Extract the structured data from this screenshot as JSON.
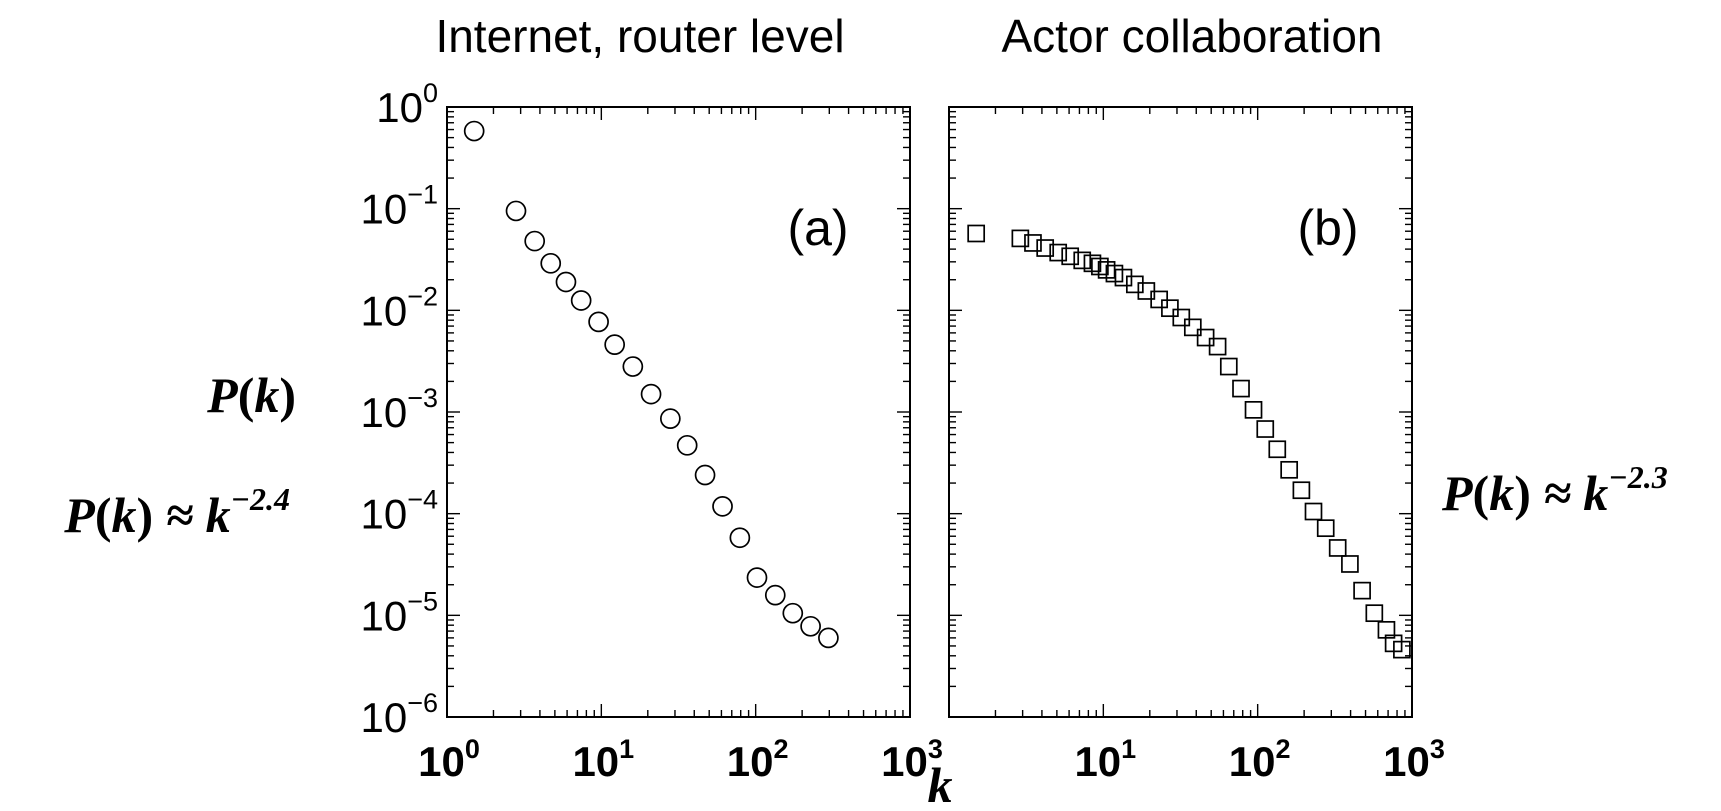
{
  "chart_data": [
    {
      "type": "scatter",
      "panel": "(a)",
      "title": "Internet, router level",
      "marker": "circle",
      "xlabel": "k",
      "ylabel": "P(k)",
      "annotation": "P(k) ≈ k^-2.4",
      "xscale": "log",
      "yscale": "log",
      "xlim": [
        1,
        1000
      ],
      "ylim": [
        1e-06,
        1
      ],
      "x_ticks": [
        {
          "base": "10",
          "exp": "0"
        },
        {
          "base": "10",
          "exp": "1"
        },
        {
          "base": "10",
          "exp": "2"
        },
        {
          "base": "10",
          "exp": "3"
        }
      ],
      "y_ticks": [
        {
          "base": "10",
          "exp": "0"
        },
        {
          "base": "10",
          "exp": "−1"
        },
        {
          "base": "10",
          "exp": "−2"
        },
        {
          "base": "10",
          "exp": "−3"
        },
        {
          "base": "10",
          "exp": "−4"
        },
        {
          "base": "10",
          "exp": "−5"
        },
        {
          "base": "10",
          "exp": "−6"
        }
      ],
      "points": [
        {
          "x": 1.5,
          "y": 0.58
        },
        {
          "x": 2.8,
          "y": 0.095
        },
        {
          "x": 3.7,
          "y": 0.048
        },
        {
          "x": 4.7,
          "y": 0.029
        },
        {
          "x": 5.9,
          "y": 0.019
        },
        {
          "x": 7.4,
          "y": 0.0125
        },
        {
          "x": 9.6,
          "y": 0.0077
        },
        {
          "x": 12.2,
          "y": 0.0046
        },
        {
          "x": 16,
          "y": 0.0028
        },
        {
          "x": 21,
          "y": 0.0015
        },
        {
          "x": 28,
          "y": 0.00086
        },
        {
          "x": 36,
          "y": 0.00047
        },
        {
          "x": 47,
          "y": 0.00024
        },
        {
          "x": 61,
          "y": 0.000118
        },
        {
          "x": 79,
          "y": 5.8e-05
        },
        {
          "x": 102,
          "y": 2.35e-05
        },
        {
          "x": 134,
          "y": 1.58e-05
        },
        {
          "x": 174,
          "y": 1.05e-05
        },
        {
          "x": 227,
          "y": 7.8e-06
        },
        {
          "x": 296,
          "y": 6e-06
        }
      ]
    },
    {
      "type": "scatter",
      "panel": "(b)",
      "title": "Actor collaboration",
      "marker": "square",
      "xlabel": "k",
      "annotation": "P(k) ≈ k^-2.3",
      "xscale": "log",
      "yscale": "log",
      "xlim": [
        1,
        1000
      ],
      "ylim": [
        1e-06,
        1
      ],
      "x_ticks": [
        {
          "base": "10",
          "exp": "1"
        },
        {
          "base": "10",
          "exp": "2"
        },
        {
          "base": "10",
          "exp": "3"
        }
      ],
      "points": [
        {
          "x": 1.5,
          "y": 0.057
        },
        {
          "x": 2.9,
          "y": 0.051
        },
        {
          "x": 3.5,
          "y": 0.046
        },
        {
          "x": 4.2,
          "y": 0.041
        },
        {
          "x": 5.1,
          "y": 0.037
        },
        {
          "x": 6.1,
          "y": 0.034
        },
        {
          "x": 7.3,
          "y": 0.031
        },
        {
          "x": 8.5,
          "y": 0.029
        },
        {
          "x": 9.5,
          "y": 0.027
        },
        {
          "x": 10.5,
          "y": 0.025
        },
        {
          "x": 11.8,
          "y": 0.023
        },
        {
          "x": 13.5,
          "y": 0.021
        },
        {
          "x": 16,
          "y": 0.018
        },
        {
          "x": 19,
          "y": 0.0155
        },
        {
          "x": 23,
          "y": 0.0128
        },
        {
          "x": 27,
          "y": 0.0105
        },
        {
          "x": 32,
          "y": 0.0085
        },
        {
          "x": 38,
          "y": 0.0068
        },
        {
          "x": 46,
          "y": 0.0054
        },
        {
          "x": 55,
          "y": 0.0044
        },
        {
          "x": 65,
          "y": 0.0028
        },
        {
          "x": 78,
          "y": 0.0017
        },
        {
          "x": 94,
          "y": 0.00105
        },
        {
          "x": 112,
          "y": 0.00068
        },
        {
          "x": 134,
          "y": 0.00043
        },
        {
          "x": 160,
          "y": 0.00027
        },
        {
          "x": 192,
          "y": 0.00017
        },
        {
          "x": 230,
          "y": 0.000105
        },
        {
          "x": 276,
          "y": 7.2e-05
        },
        {
          "x": 330,
          "y": 4.6e-05
        },
        {
          "x": 396,
          "y": 3.2e-05
        },
        {
          "x": 475,
          "y": 1.75e-05
        },
        {
          "x": 570,
          "y": 1.05e-05
        },
        {
          "x": 683,
          "y": 7.2e-06
        },
        {
          "x": 760,
          "y": 5.3e-06
        },
        {
          "x": 860,
          "y": 4.6e-06
        }
      ]
    }
  ]
}
